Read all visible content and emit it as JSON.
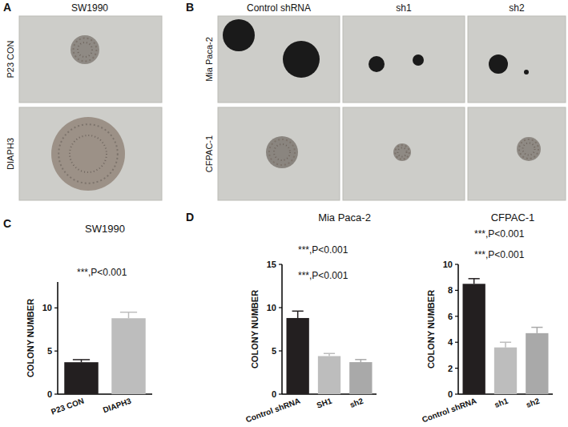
{
  "figure": {
    "panel_labels": [
      "A",
      "B",
      "C",
      "D"
    ],
    "panel_a": {
      "title": "SW1990",
      "rows": [
        "P23 CON",
        "DIAPH3"
      ]
    },
    "panel_b": {
      "columns": [
        "Control shRNA",
        "sh1",
        "sh2"
      ],
      "rows": [
        "Mia Paca-2",
        "CFPAC-1"
      ]
    }
  },
  "chart_data": [
    {
      "type": "bar",
      "title": "SW1990",
      "y_label": "COLONY NUMBER",
      "categories": [
        "P23 CON",
        "DIAPH3"
      ],
      "values": [
        3.7,
        8.8
      ],
      "errors": [
        0.3,
        0.7
      ],
      "colors": [
        "#231f20",
        "#bdbdbd"
      ],
      "ylim": [
        0,
        13
      ],
      "yticks": [
        0,
        5,
        10
      ],
      "grid": false,
      "annotations": [
        "***,P<0.001"
      ]
    },
    {
      "type": "bar",
      "title": "Mia Paca-2",
      "y_label": "COLONY NUMBER",
      "categories": [
        "Control shRNA",
        "SH1",
        "sh2"
      ],
      "values": [
        8.8,
        4.4,
        3.7
      ],
      "errors": [
        0.8,
        0.3,
        0.3
      ],
      "colors": [
        "#231f20",
        "#bdbdbd",
        "#a9a9a9"
      ],
      "ylim": [
        0,
        15
      ],
      "yticks": [
        0,
        5,
        10,
        15
      ],
      "grid": false,
      "annotations": [
        "***,P<0.001",
        "***,P<0.001"
      ]
    },
    {
      "type": "bar",
      "title": "CFPAC-1",
      "y_label": "COLONY NUMBER",
      "categories": [
        "Control shRNA",
        "sh1",
        "sh2"
      ],
      "values": [
        8.5,
        3.6,
        4.7
      ],
      "errors": [
        0.4,
        0.4,
        0.45
      ],
      "colors": [
        "#231f20",
        "#bdbdbd",
        "#a9a9a9"
      ],
      "ylim": [
        0,
        10
      ],
      "yticks": [
        0,
        2,
        4,
        6,
        8,
        10
      ],
      "grid": false,
      "annotations": [
        "***,P<0.001",
        "***,P<0.001"
      ]
    }
  ]
}
